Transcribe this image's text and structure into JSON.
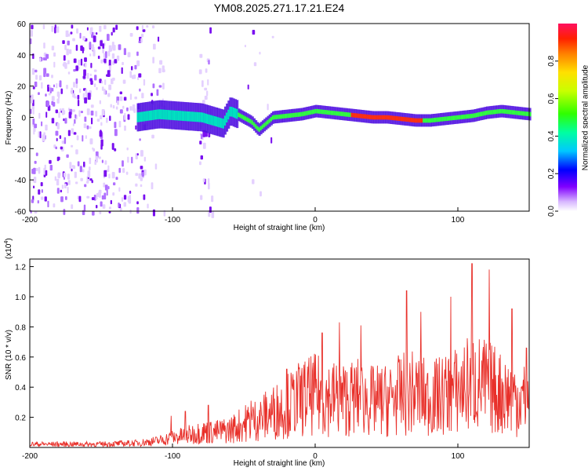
{
  "title": "YM08.2025.271.17.21.E24",
  "chart_data": [
    {
      "type": "heatmap",
      "name": "spectrogram",
      "xlabel": "Height of straight line (km)",
      "ylabel": "Frequency (Hz)",
      "xlim": [
        -200,
        150
      ],
      "ylim": [
        -60,
        60
      ],
      "xticks": [
        "-200",
        "-100",
        "0",
        "100"
      ],
      "xtick_values": [
        -200,
        -100,
        0,
        100
      ],
      "yticks": [
        "60",
        "40",
        "20",
        "0",
        "-20",
        "-40",
        "-60"
      ],
      "ytick_values": [
        60,
        40,
        20,
        0,
        -20,
        -40,
        -60
      ],
      "signal_track": {
        "x": [
          -125,
          -110,
          -95,
          -80,
          -65,
          -60,
          -55,
          -45,
          -40,
          -30,
          -20,
          -10,
          0,
          10,
          20,
          30,
          40,
          50,
          60,
          70,
          80,
          90,
          100,
          110,
          120,
          130,
          140,
          150
        ],
        "y": [
          0,
          2,
          1,
          0,
          -4,
          4,
          2,
          -3,
          -8,
          0,
          1,
          2,
          4,
          3,
          2,
          1,
          0,
          0,
          -1,
          -2,
          -2,
          -1,
          0,
          1,
          3,
          4,
          3,
          2
        ]
      },
      "colorbar": {
        "label": "Normalized spectral amplitude",
        "range": [
          0,
          1
        ],
        "ticks": [
          "0.0",
          "0.2",
          "0.4",
          "0.6",
          "0.8"
        ],
        "tick_values": [
          0.0,
          0.2,
          0.4,
          0.6,
          0.8
        ]
      }
    },
    {
      "type": "line",
      "name": "snr",
      "xlabel": "Height of straight line (km)",
      "ylabel": "SNR (10 * v/v)",
      "scale_label": "(x10",
      "scale_exponent": "4",
      "scale_close": ")",
      "xlim": [
        -200,
        150
      ],
      "ylim": [
        0,
        1.25
      ],
      "xticks": [
        "-200",
        "-100",
        "0",
        "100"
      ],
      "xtick_values": [
        -200,
        -100,
        0,
        100
      ],
      "yticks": [
        "0.2",
        "0.4",
        "0.6",
        "0.8",
        "1.0",
        "1.2"
      ],
      "ytick_values": [
        0.2,
        0.4,
        0.6,
        0.8,
        1.0,
        1.2
      ],
      "color": "#e8302a",
      "envelope": {
        "x": [
          -200,
          -150,
          -125,
          -110,
          -100,
          -90,
          -80,
          -70,
          -60,
          -50,
          -40,
          -30,
          -20,
          -10,
          0,
          10,
          20,
          30,
          40,
          50,
          60,
          70,
          80,
          90,
          100,
          110,
          120,
          130,
          140,
          150
        ],
        "y": [
          0.03,
          0.03,
          0.04,
          0.06,
          0.09,
          0.11,
          0.14,
          0.14,
          0.16,
          0.22,
          0.26,
          0.32,
          0.38,
          0.45,
          0.48,
          0.46,
          0.44,
          0.46,
          0.42,
          0.43,
          0.48,
          0.5,
          0.44,
          0.48,
          0.52,
          0.6,
          0.56,
          0.5,
          0.46,
          0.42
        ]
      },
      "peaks": {
        "x": [
          -101,
          -91,
          -75,
          -45,
          -20,
          5,
          17,
          32,
          64,
          74,
          95,
          110,
          122,
          138,
          148
        ],
        "y": [
          0.21,
          0.24,
          0.28,
          0.31,
          0.52,
          0.76,
          0.83,
          0.81,
          1.04,
          0.9,
          1.0,
          1.22,
          1.18,
          0.92,
          0.66
        ]
      }
    }
  ]
}
